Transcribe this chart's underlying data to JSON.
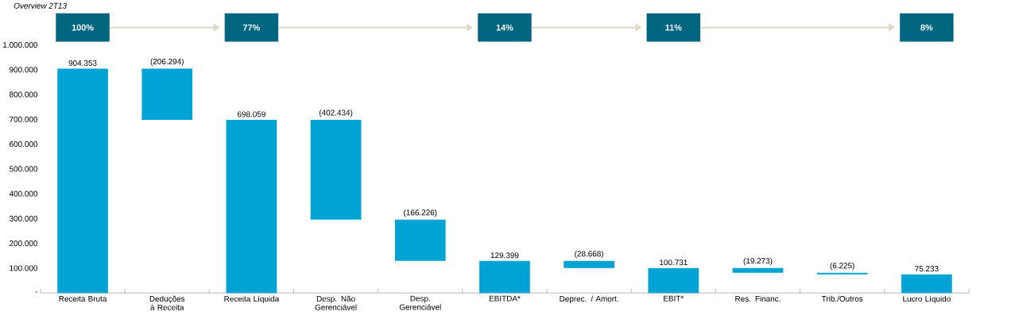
{
  "chart_data": {
    "type": "bar",
    "title": "Overview 2T13",
    "categories": [
      "Receita Bruta",
      "Deduções à Receita",
      "Receita Líquida",
      "Desp. Não Gerenciável",
      "Desp. Gerenciável",
      "EBITDA*",
      "Deprec. / Amort.",
      "EBIT*",
      "Res. Financ.",
      "Trib./Outros",
      "Lucro Líquido"
    ],
    "values": [
      904353,
      -206294,
      698059,
      -402434,
      -166226,
      129399,
      -28668,
      100731,
      -19273,
      -6225,
      75233
    ],
    "base": [
      0,
      904353,
      0,
      698059,
      295625,
      0,
      129399,
      0,
      100731,
      81458,
      0
    ],
    "value_labels": [
      "904.353",
      "(206.294)",
      "698.059",
      "(402.434)",
      "(166.226)",
      "129.399",
      "(28.668)",
      "100.731",
      "(19.273)",
      "(6.225)",
      "75.233"
    ],
    "color": "#00a3d4",
    "ylim": [
      0,
      1000000
    ],
    "yticks": [
      {
        "value": 0,
        "label": "-"
      },
      {
        "value": 100000,
        "label": "100.000"
      },
      {
        "value": 200000,
        "label": "200.000"
      },
      {
        "value": 300000,
        "label": "300.000"
      },
      {
        "value": 400000,
        "label": "400.000"
      },
      {
        "value": 500000,
        "label": "500.000"
      },
      {
        "value": 600000,
        "label": "600.000"
      },
      {
        "value": 700000,
        "label": "700.000"
      },
      {
        "value": 800000,
        "label": "800.000"
      },
      {
        "value": 900000,
        "label": "900.000"
      },
      {
        "value": 1000000,
        "label": "1.000.000"
      }
    ],
    "annotations": [
      "100%",
      "77%",
      "14%",
      "11%",
      "8%"
    ]
  }
}
